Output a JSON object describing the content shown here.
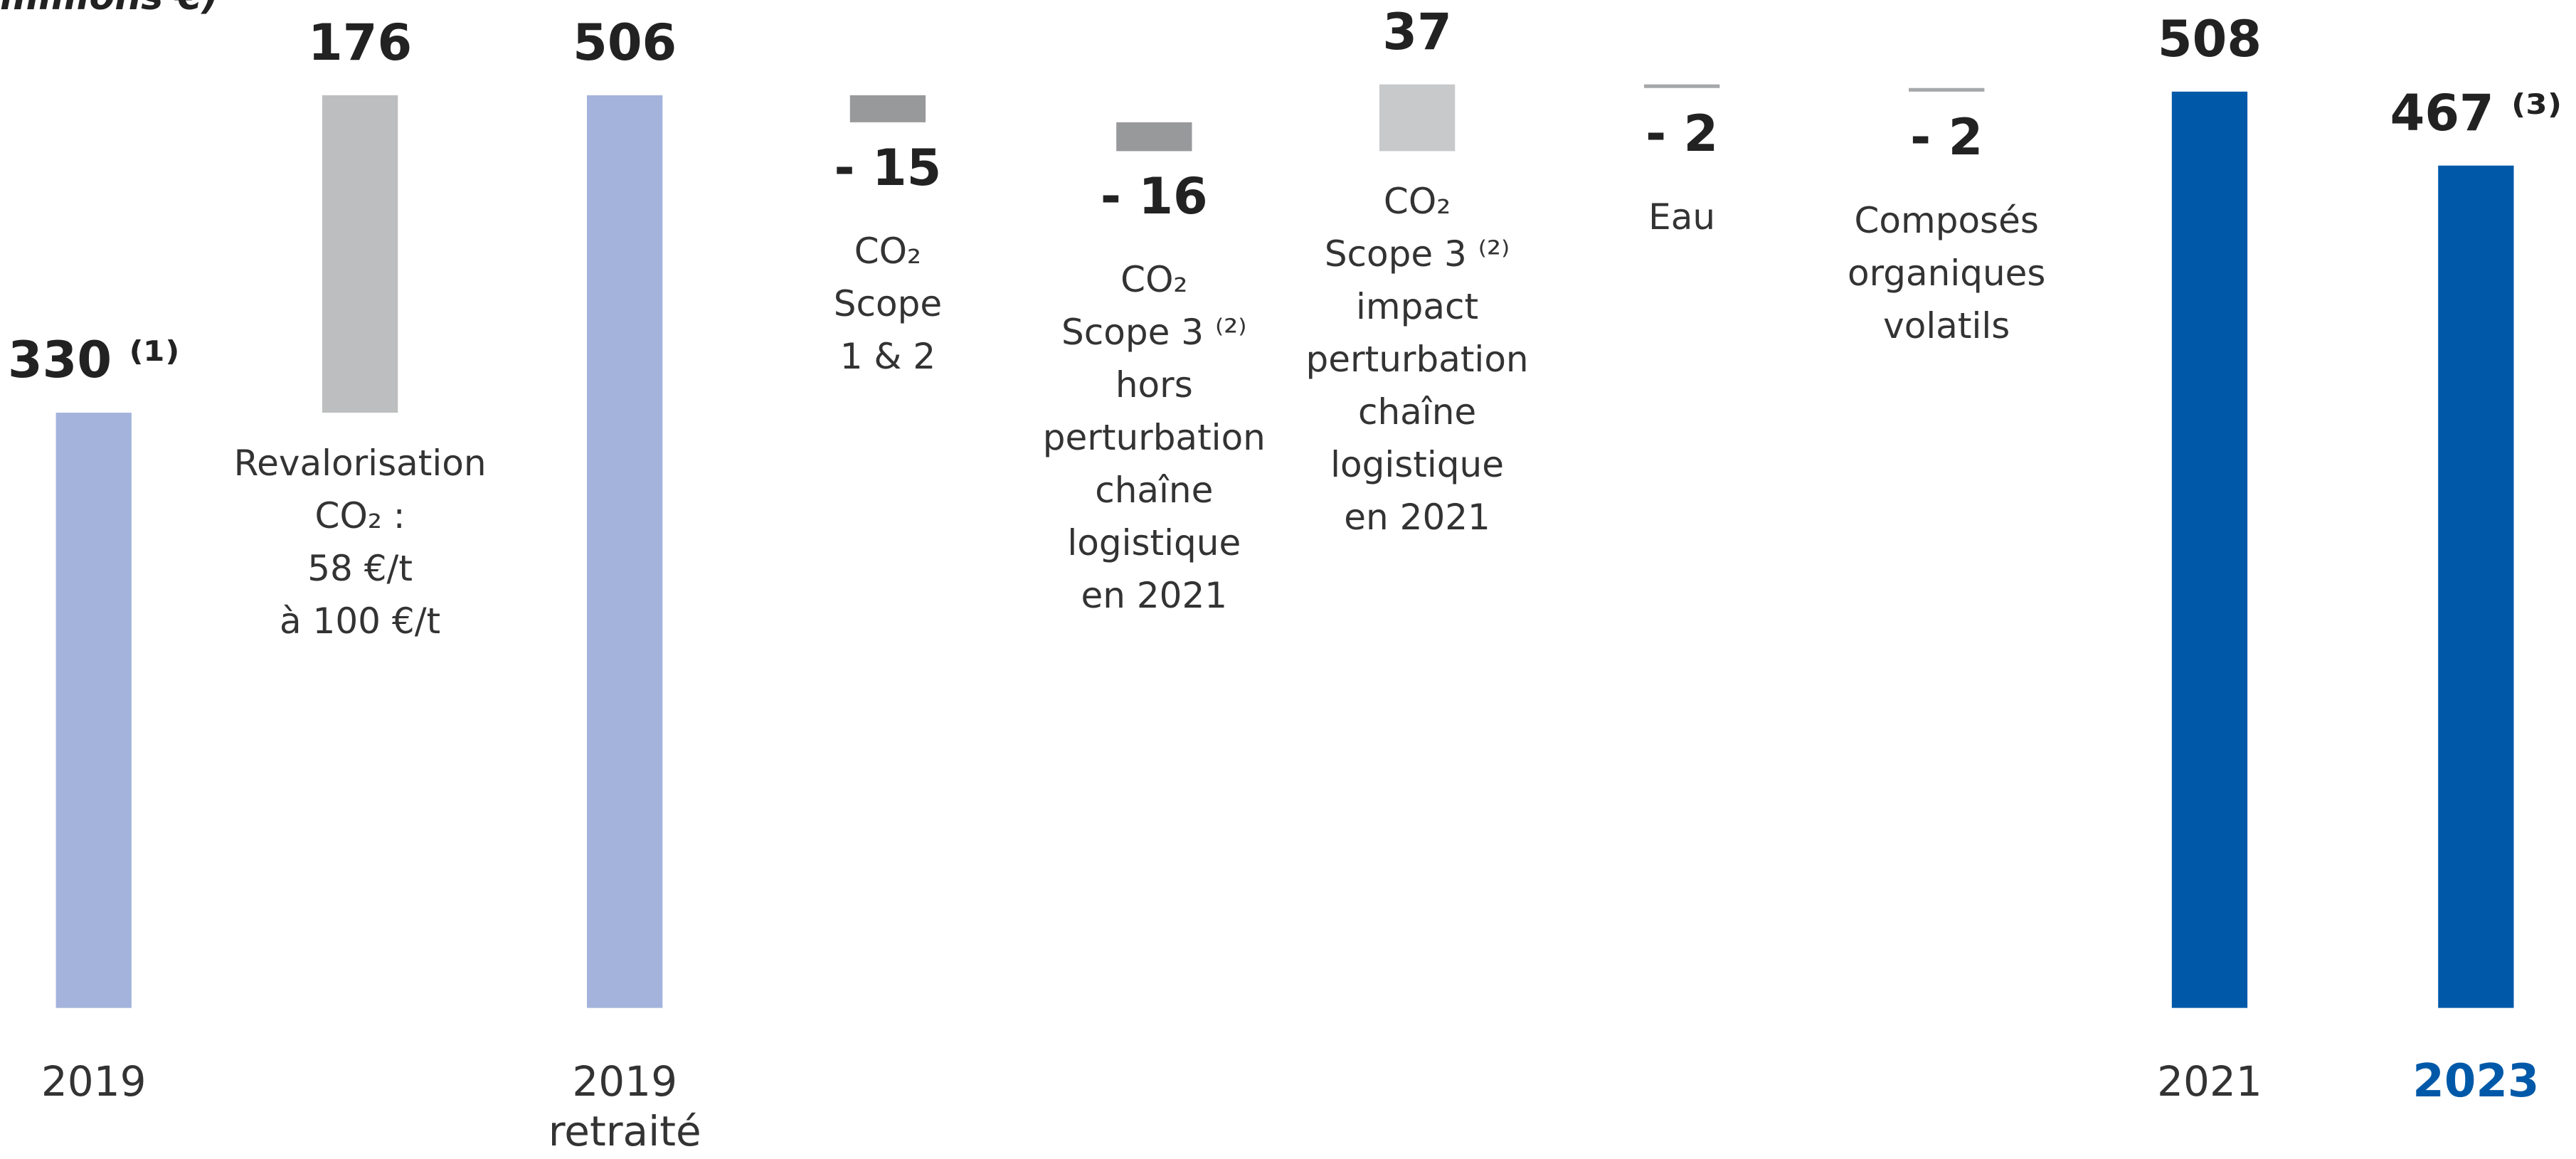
{
  "chart_data": {
    "type": "waterfall",
    "subtitle": "millions €)",
    "categories": [
      "2019",
      null,
      "2019 retraité",
      null,
      null,
      null,
      null,
      null,
      "2021",
      "2023"
    ],
    "values": [
      330,
      176,
      506,
      -15,
      -16,
      37,
      -2,
      -2,
      508,
      467
    ],
    "value_labels": [
      "330 ⁽¹⁾",
      "176",
      "506",
      "- 15",
      "- 16",
      "37",
      "- 2",
      "- 2",
      "508",
      "467 ⁽³⁾"
    ],
    "kinds": [
      "total",
      "delta",
      "total",
      "delta",
      "delta",
      "delta",
      "delta",
      "delta",
      "total",
      "total"
    ],
    "colors": [
      "#a3b3dc",
      "#bdbebf",
      "#a3b3dc",
      "#98999b",
      "#98999b",
      "#c8c9ca",
      "#a6a7a9",
      "#a6a7a9",
      "#0059a8",
      "#0059a8"
    ],
    "notes": [
      null,
      "Revalorisation\nCO₂ :\n58 €/t\nà 100 €/t",
      null,
      "CO₂\nScope\n1 & 2",
      "CO₂\nScope 3 ⁽²⁾\nhors\nperturbation\nchaîne\nlogistique\nen 2021",
      "CO₂\nScope 3 ⁽²⁾\nimpact\nperturbation\nchaîne\nlogistique\nen 2021",
      "Eau",
      "Composés\norganiques\nvolatils",
      null,
      null
    ]
  }
}
